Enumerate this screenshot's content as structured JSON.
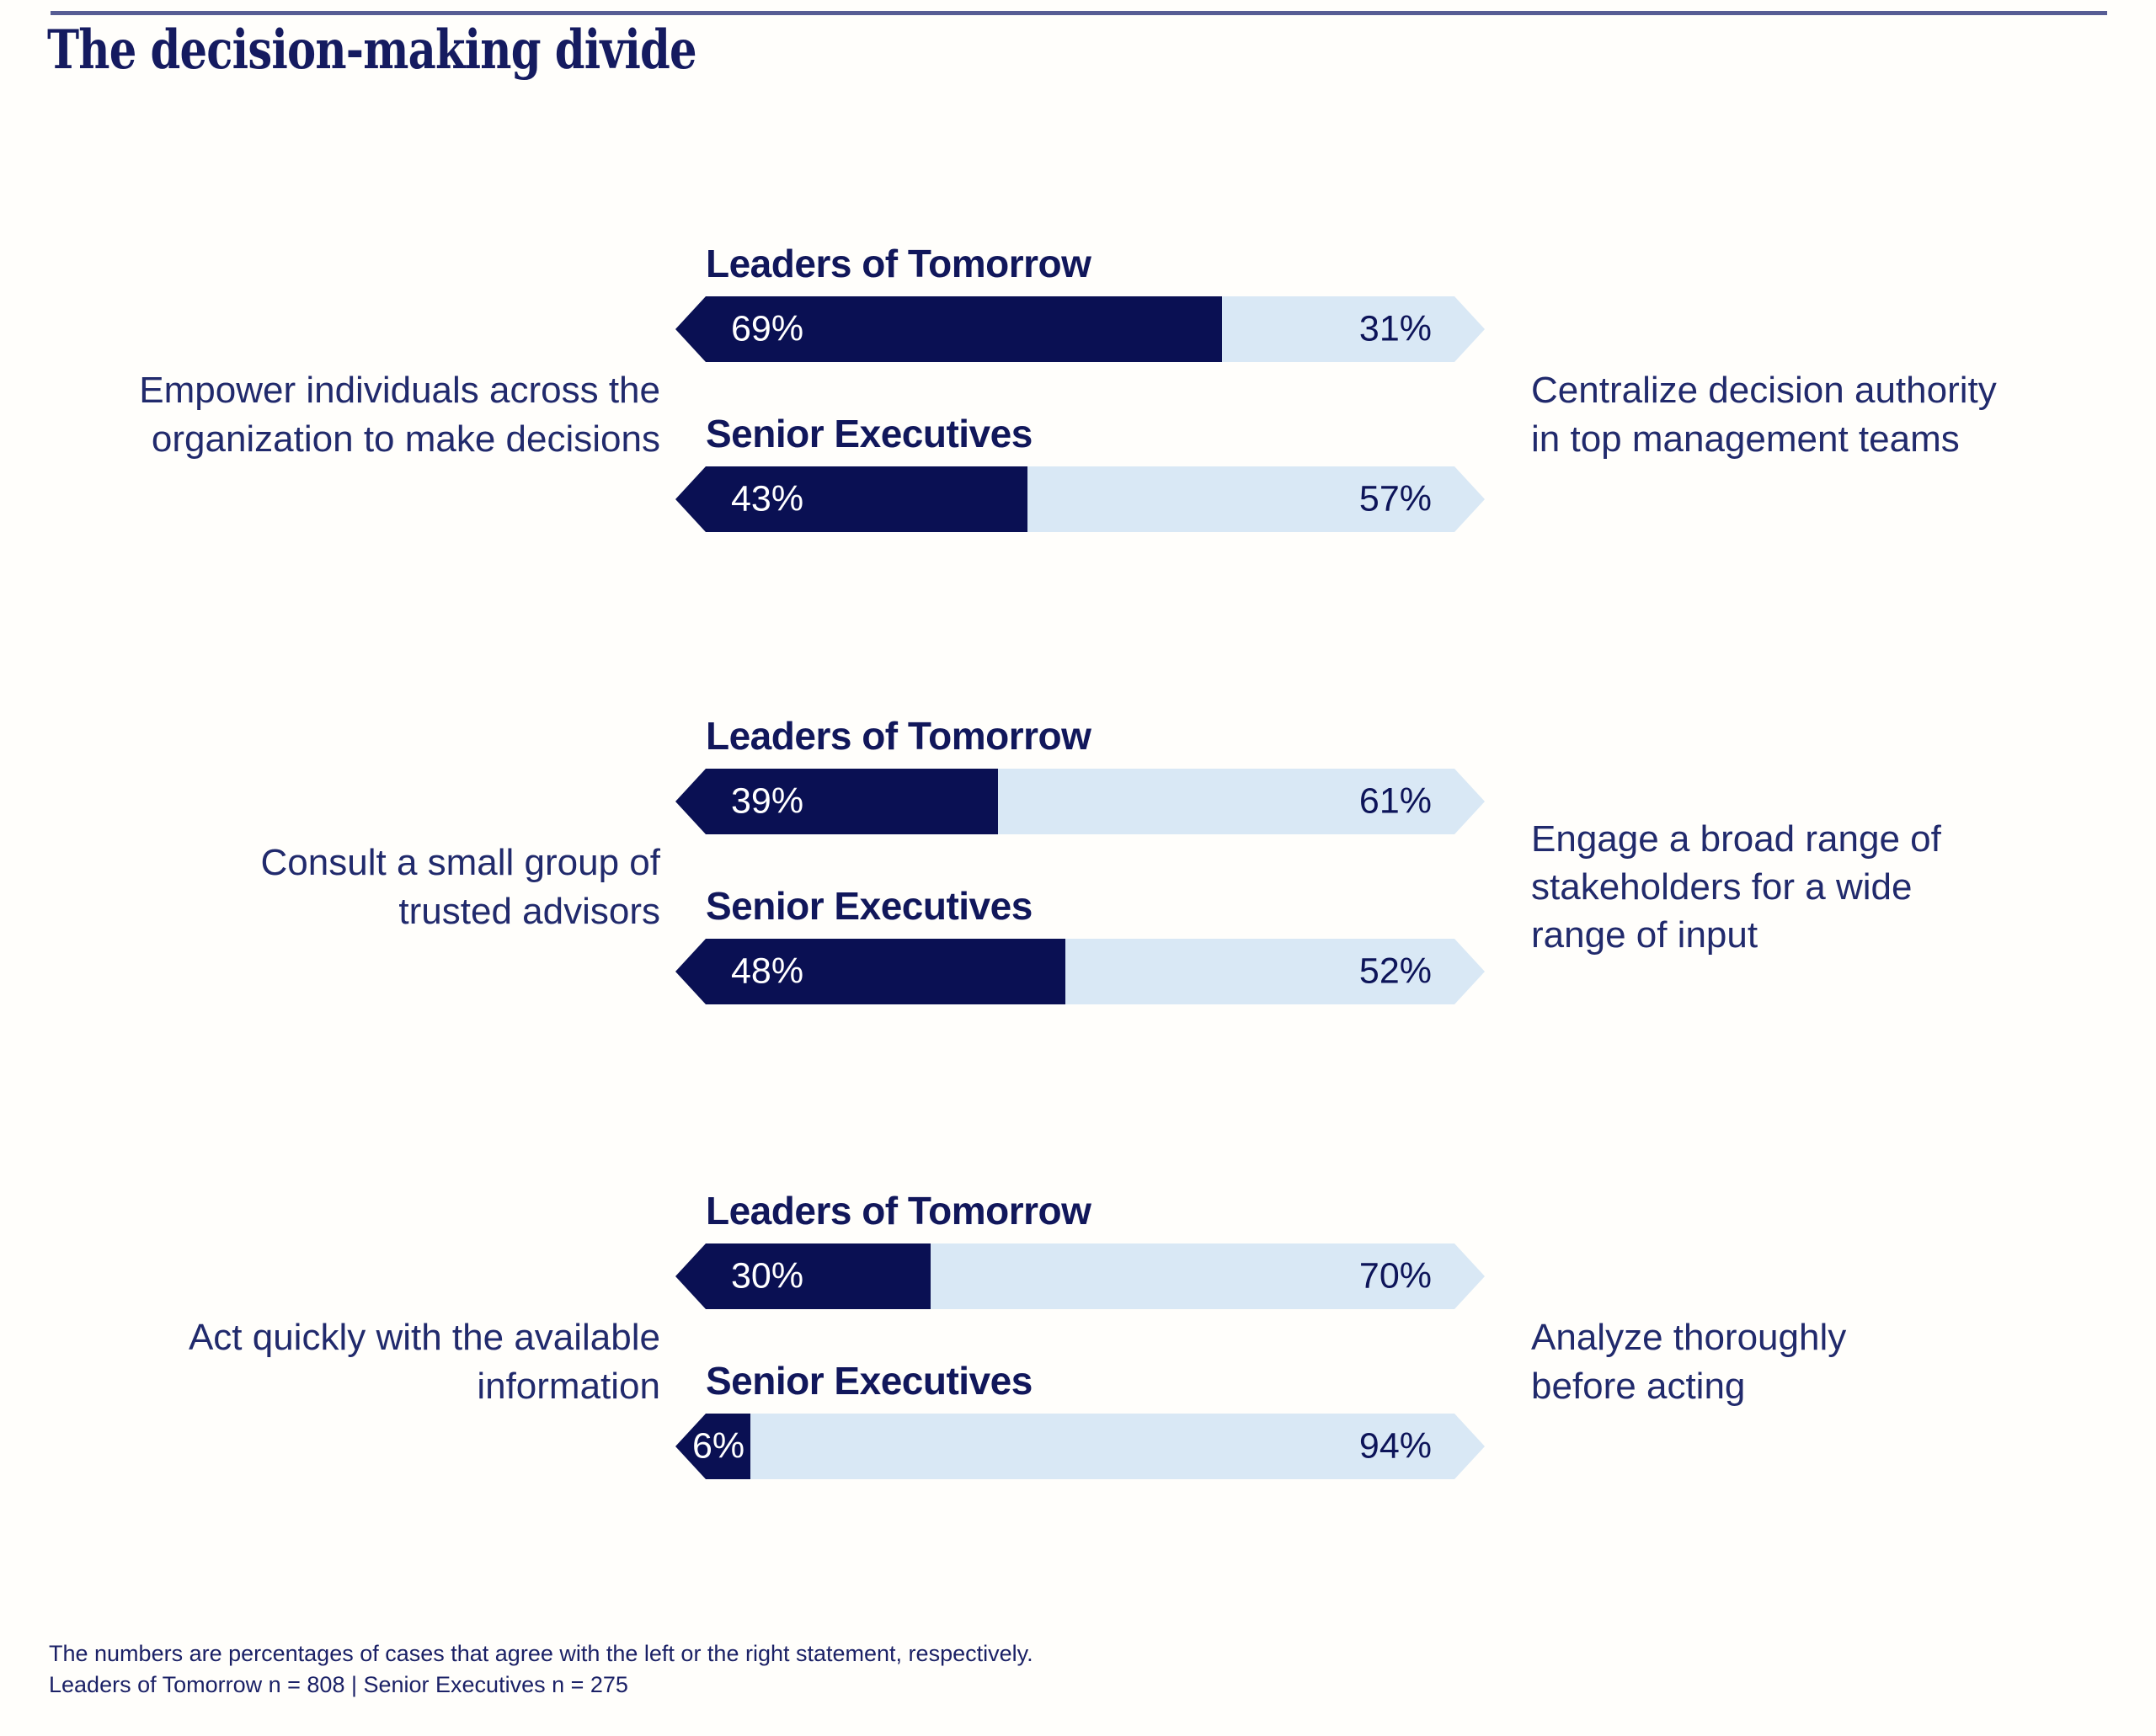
{
  "title": "The decision-making divide",
  "colors": {
    "left_bar_navy": "#0a1053",
    "right_bar_light_blue": "#d9e8f5",
    "top_rule": "#575d94",
    "text_navy": "#1c2368",
    "background": "#fffefb"
  },
  "groups": [
    {
      "left_statement": "Empower individuals across the\norganization to make decisions",
      "right_statement": "Centralize decision authority\nin top management teams",
      "rows": [
        {
          "label": "Leaders of Tomorrow",
          "left_pct": 69,
          "right_pct": 31,
          "left_label": "69%",
          "right_label": "31%"
        },
        {
          "label": "Senior Executives",
          "left_pct": 43,
          "right_pct": 57,
          "left_label": "43%",
          "right_label": "57%"
        }
      ]
    },
    {
      "left_statement": "Consult a small group of\ntrusted advisors",
      "right_statement": "Engage a broad range of\nstakeholders for a wide\nrange of input",
      "rows": [
        {
          "label": "Leaders of Tomorrow",
          "left_pct": 39,
          "right_pct": 61,
          "left_label": "39%",
          "right_label": "61%"
        },
        {
          "label": "Senior Executives",
          "left_pct": 48,
          "right_pct": 52,
          "left_label": "48%",
          "right_label": "52%"
        }
      ]
    },
    {
      "left_statement": "Act quickly with the available\ninformation",
      "right_statement": "Analyze thoroughly\nbefore acting",
      "rows": [
        {
          "label": "Leaders of Tomorrow",
          "left_pct": 30,
          "right_pct": 70,
          "left_label": "30%",
          "right_label": "70%"
        },
        {
          "label": "Senior Executives",
          "left_pct": 6,
          "right_pct": 94,
          "left_label": "6%",
          "right_label": "94%"
        }
      ]
    }
  ],
  "footnote": {
    "line1": "The numbers are percentages of cases that agree with the left or the right statement, respectively.",
    "line2": "Leaders of Tomorrow n = 808 | Senior Executives n = 275"
  },
  "chart_data": {
    "type": "bar",
    "variant": "diverging-horizontal-arrow-bars",
    "title": "The decision-making divide",
    "unit": "percent",
    "xlim": [
      0,
      100
    ],
    "left_color": "#0a1053",
    "right_color": "#d9e8f5",
    "categories": [
      "Leaders of Tomorrow",
      "Senior Executives"
    ],
    "groups": [
      {
        "left_statement": "Empower individuals across the organization to make decisions",
        "right_statement": "Centralize decision authority in top management teams",
        "series": [
          {
            "name": "Leaders of Tomorrow",
            "left_value": 69,
            "right_value": 31
          },
          {
            "name": "Senior Executives",
            "left_value": 43,
            "right_value": 57
          }
        ]
      },
      {
        "left_statement": "Consult a small group of trusted advisors",
        "right_statement": "Engage a broad range of stakeholders for a wide range of input",
        "series": [
          {
            "name": "Leaders of Tomorrow",
            "left_value": 39,
            "right_value": 61
          },
          {
            "name": "Senior Executives",
            "left_value": 48,
            "right_value": 52
          }
        ]
      },
      {
        "left_statement": "Act quickly with the available information",
        "right_statement": "Analyze thoroughly before acting",
        "series": [
          {
            "name": "Leaders of Tomorrow",
            "left_value": 30,
            "right_value": 70
          },
          {
            "name": "Senior Executives",
            "left_value": 6,
            "right_value": 94
          }
        ]
      }
    ],
    "notes": "The numbers are percentages of cases that agree with the left or the right statement, respectively. Leaders of Tomorrow n = 808 | Senior Executives n = 275",
    "sample_sizes": {
      "Leaders of Tomorrow": 808,
      "Senior Executives": 275
    }
  }
}
